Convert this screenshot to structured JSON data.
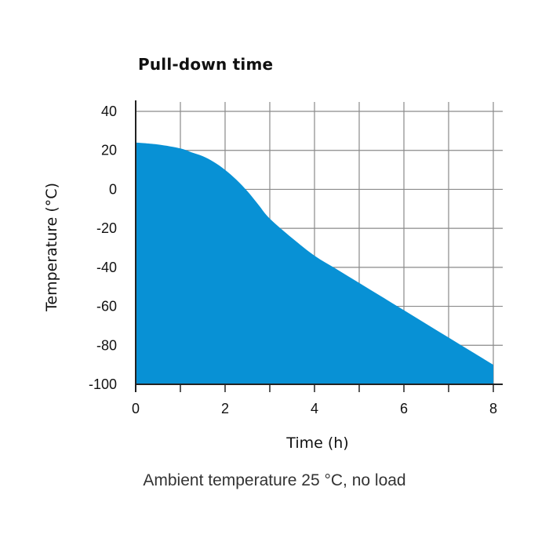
{
  "chart_data": {
    "type": "area",
    "title": "Pull-down time",
    "xlabel": "Time (h)",
    "ylabel": "Temperature (°C)",
    "caption": "Ambient temperature 25 °C, no load",
    "xlim": [
      0,
      8
    ],
    "ylim": [
      -100,
      40
    ],
    "x_ticks": [
      0,
      2,
      4,
      6,
      8
    ],
    "y_ticks": [
      40,
      20,
      0,
      -20,
      -40,
      -60,
      -80,
      -100
    ],
    "grid": true,
    "fill_color": "#0891d5",
    "series": [
      {
        "x": [
          0,
          0.5,
          1,
          1.25,
          1.5,
          1.75,
          2,
          2.25,
          2.5,
          2.75,
          3,
          3.5,
          4,
          4.5,
          5,
          5.5,
          6,
          6.5,
          7,
          7.5,
          8
        ],
        "y": [
          24,
          23,
          21,
          19,
          17,
          14,
          10,
          5,
          -1,
          -8,
          -15,
          -25,
          -34,
          -41,
          -48,
          -55,
          -62,
          -69,
          -76,
          -83,
          -90
        ]
      }
    ]
  }
}
